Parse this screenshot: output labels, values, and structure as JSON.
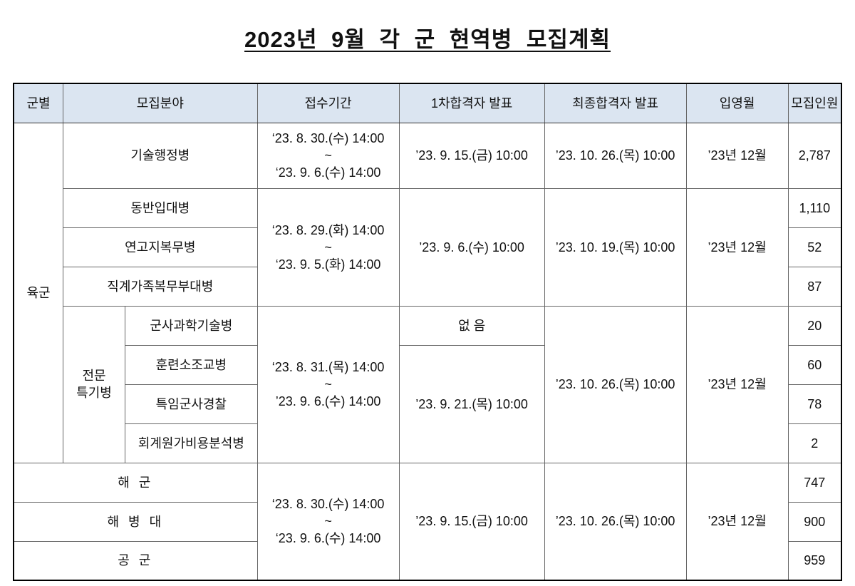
{
  "title": "2023년 9월 각 군 현역병 모집계획",
  "headers": [
    "군별",
    "모집분야",
    "접수기간",
    "1차합격자 발표",
    "최종합격자 발표",
    "입영월",
    "모집인원"
  ],
  "army": "육군",
  "specialist": "전문\n특기병",
  "periods": {
    "a": "‘23. 8. 30.(수) 14:00\n~\n‘23. 9. 6.(수) 14:00",
    "b": "‘23. 8. 29.(화) 14:00\n~\n‘23. 9. 5.(화) 14:00",
    "c": "‘23. 8. 31.(목) 14:00\n~\n’23. 9. 6.(수) 14:00",
    "d": "‘23. 8. 30.(수) 14:00\n~\n‘23. 9. 6.(수) 14:00"
  },
  "rows": [
    {
      "field": "기술행정병",
      "first": "’23. 9. 15.(금) 10:00",
      "final": "’23. 10. 26.(목) 10:00",
      "enlist": "’23년 12월",
      "count": "2,787"
    },
    {
      "field": "동반입대병",
      "first": "’23. 9. 6.(수) 10:00",
      "final": "’23. 10. 19.(목) 10:00",
      "enlist": "’23년 12월",
      "count": "1,110"
    },
    {
      "field": "연고지복무병",
      "count": "52"
    },
    {
      "field": "직계가족복무부대병",
      "count": "87"
    },
    {
      "field": "군사과학기술병",
      "first": "없 음",
      "final": "’23. 10. 26.(목) 10:00",
      "enlist": "’23년 12월",
      "count": "20"
    },
    {
      "field": "훈련소조교병",
      "first": "’23. 9. 21.(목) 10:00",
      "count": "60"
    },
    {
      "field": "특임군사경찰",
      "count": "78"
    },
    {
      "field": "회계원가비용분석병",
      "count": "2"
    },
    {
      "field": "해 군",
      "first": "’23. 9. 15.(금) 10:00",
      "final": "’23. 10. 26.(목) 10:00",
      "enlist": "’23년 12월",
      "count": "747"
    },
    {
      "field": "해 병 대",
      "count": "900"
    },
    {
      "field": "공 군",
      "count": "959"
    }
  ]
}
